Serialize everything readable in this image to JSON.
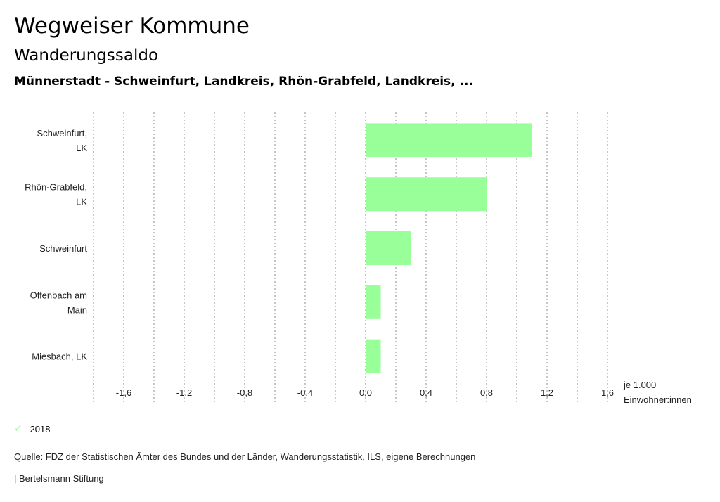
{
  "header": {
    "title": "Wegweiser Kommune",
    "subtitle": "Wanderungssaldo",
    "region": "Münnerstadt - Schweinfurt, Landkreis, Rhön-Grabfeld, Landkreis, ..."
  },
  "chart_data": {
    "type": "bar",
    "orientation": "horizontal",
    "categories": [
      [
        "Schweinfurt,",
        "LK"
      ],
      [
        "Rhön-Grabfeld,",
        "LK"
      ],
      [
        "Schweinfurt"
      ],
      [
        "Offenbach am",
        "Main"
      ],
      [
        "Miesbach, LK"
      ]
    ],
    "series": [
      {
        "name": "2018",
        "color": "#99ff99",
        "values": [
          1.1,
          0.8,
          0.3,
          0.1,
          0.1
        ]
      }
    ],
    "xlim": [
      -1.8,
      1.6
    ],
    "gridlines": [
      -1.8,
      -1.6,
      -1.4,
      -1.2,
      -1.0,
      -0.8,
      -0.6,
      -0.4,
      -0.2,
      0.0,
      0.2,
      0.4,
      0.6,
      0.8,
      1.0,
      1.2,
      1.4,
      1.6
    ],
    "ticks": [
      -1.6,
      -1.2,
      -0.8,
      -0.4,
      0.0,
      0.4,
      0.8,
      1.2,
      1.6
    ],
    "tick_labels": [
      "-1,6",
      "-1,2",
      "-0,8",
      "-0,4",
      "0,0",
      "0,4",
      "0,8",
      "1,2",
      "1,6"
    ],
    "unit_label": [
      "je 1.000",
      "Einwohner:innen"
    ],
    "grid": true
  },
  "legend": {
    "label": "2018",
    "icon": "check-icon",
    "color": "#99ff99"
  },
  "footer": {
    "source": "Quelle: FDZ der Statistischen Ämter des Bundes und der Länder, Wanderungsstatistik, ILS, eigene Berechnungen",
    "credit": "| Bertelsmann Stiftung"
  }
}
